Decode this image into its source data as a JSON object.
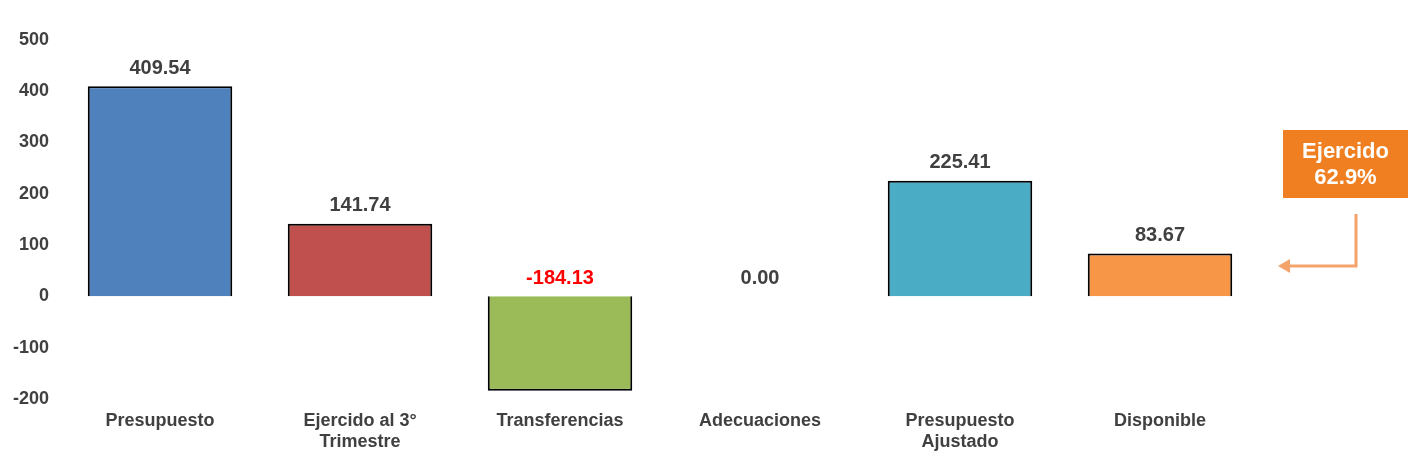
{
  "chart_data": {
    "type": "bar",
    "categories": [
      "Presupuesto",
      "Ejercido al 3° Trimestre",
      "Transferencias",
      "Adecuaciones",
      "Presupuesto Ajustado",
      "Disponible"
    ],
    "values": [
      409.54,
      141.74,
      -184.13,
      0.0,
      225.41,
      83.67
    ],
    "colors": [
      "#4f81bd",
      "#c0504d",
      "#9bbb59",
      "#8064a2",
      "#4bacc6",
      "#f79646"
    ],
    "ylim": [
      -200,
      500
    ],
    "yticks": [
      -200,
      -100,
      0,
      100,
      200,
      300,
      400,
      500
    ],
    "value_labels": [
      "409.54",
      "141.74",
      "-184.13",
      "0.00",
      "225.41",
      "83.67"
    ],
    "grid": false,
    "legend": false,
    "annotations": [
      "Ejercido 62.9%"
    ]
  }
}
